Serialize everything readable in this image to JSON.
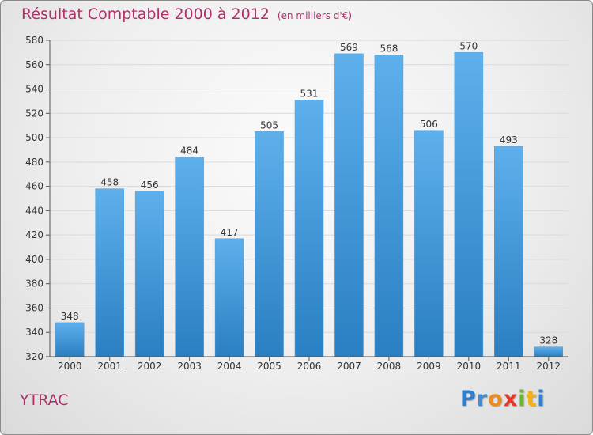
{
  "header": {
    "title": "Résultat Comptable 2000 à 2012",
    "subtitle": "(en milliers d'€)"
  },
  "footer": {
    "location": "YTRAC",
    "brand_letters": [
      {
        "char": "P",
        "color": "#2f7fd0"
      },
      {
        "char": "r",
        "color": "#3a8fd8"
      },
      {
        "char": "o",
        "color": "#f08a1c"
      },
      {
        "char": "x",
        "color": "#e23a2a"
      },
      {
        "char": "i",
        "color": "#6ab82e"
      },
      {
        "char": "t",
        "color": "#f5b01a"
      },
      {
        "char": "i",
        "color": "#2f7fd0"
      }
    ]
  },
  "colors": {
    "bar_light": "#5eb0ec",
    "bar_dark": "#2a7fc2",
    "accent": "#b0306a",
    "grid": "#d9d9d9",
    "axis": "#555555"
  },
  "chart_data": {
    "type": "bar",
    "title": "Résultat Comptable 2000 à 2012",
    "subtitle": "(en milliers d'€)",
    "xlabel": "",
    "ylabel": "",
    "categories": [
      "2000",
      "2001",
      "2002",
      "2003",
      "2004",
      "2005",
      "2006",
      "2007",
      "2008",
      "2009",
      "2010",
      "2011",
      "2012"
    ],
    "values": [
      348,
      458,
      456,
      484,
      417,
      505,
      531,
      569,
      568,
      506,
      570,
      493,
      328
    ],
    "ylim": [
      320,
      580
    ],
    "yticks": [
      320,
      340,
      360,
      380,
      400,
      420,
      440,
      460,
      480,
      500,
      520,
      540,
      560,
      580
    ],
    "grid": true,
    "legend": "none"
  }
}
